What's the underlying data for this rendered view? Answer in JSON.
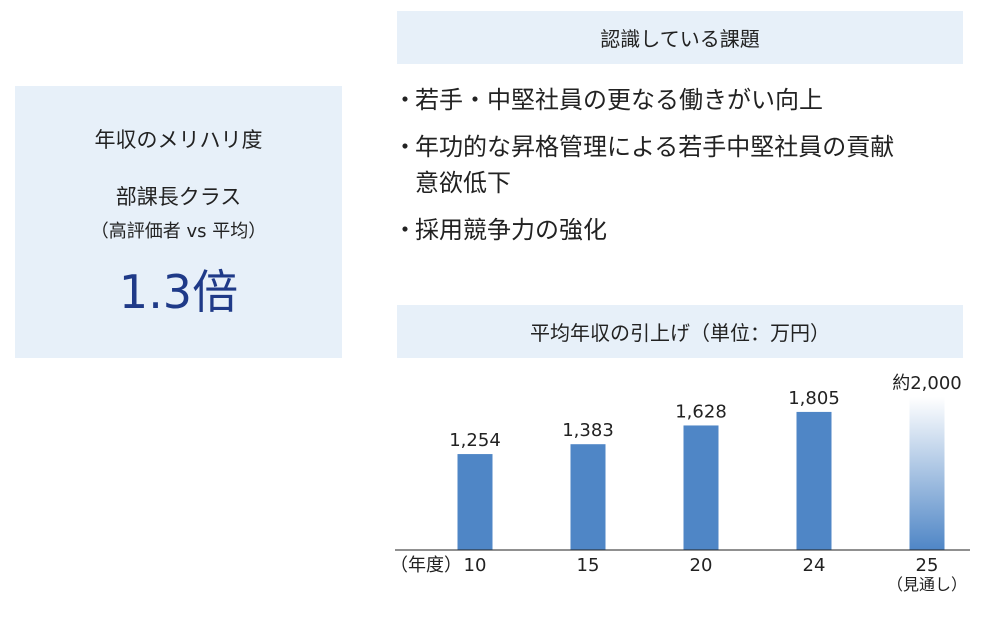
{
  "left_panel": {
    "title": "年収のメリハリ度",
    "subtitle": "部課長クラス",
    "note": "（高評価者 vs 平均）",
    "value": "1.3倍"
  },
  "issues_section": {
    "heading": "認識している課題",
    "bullet": "・",
    "items": [
      {
        "text": "若手・中堅社員の更なる働きがい向上"
      },
      {
        "text": "年功的な昇格管理による若手中堅社員の貢献",
        "text_cont": "意欲低下"
      },
      {
        "text": "採用競争力の強化"
      }
    ]
  },
  "chart_heading": "平均年収の引上げ（単位：万円）",
  "colors": {
    "panel_bg": "#e7f0f9",
    "bar": "#4f86c6",
    "highlight_value": "#1f3a88",
    "baseline": "#222222"
  },
  "chart_data": {
    "type": "bar",
    "xlabel": "（年度）",
    "categories": [
      "10",
      "15",
      "20",
      "24",
      "25"
    ],
    "category_notes": [
      "",
      "",
      "",
      "",
      "（見通し）"
    ],
    "values": [
      1254,
      1383,
      1628,
      1805,
      2000
    ],
    "value_labels": [
      "1,254",
      "1,383",
      "1,628",
      "1,805",
      "約2,000"
    ],
    "estimated": [
      false,
      false,
      false,
      false,
      true
    ],
    "ylim": [
      0,
      2000
    ],
    "grid": false,
    "legend": "none"
  }
}
